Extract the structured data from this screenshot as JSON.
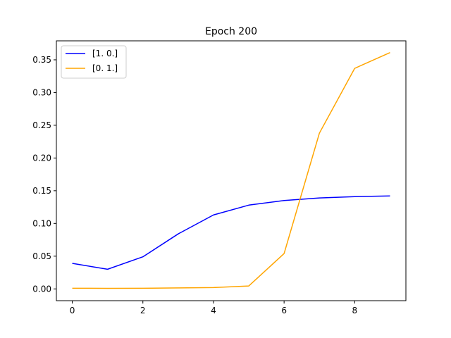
{
  "chart_data": {
    "type": "line",
    "title": "Epoch 200",
    "xlabel": "",
    "ylabel": "",
    "xlim": [
      -0.45,
      9.45
    ],
    "ylim": [
      -0.018,
      0.379
    ],
    "xticks": [
      0,
      2,
      4,
      6,
      8
    ],
    "xtick_labels": [
      "0",
      "2",
      "4",
      "6",
      "8"
    ],
    "yticks": [
      0.0,
      0.05,
      0.1,
      0.15,
      0.2,
      0.25,
      0.3,
      0.35
    ],
    "ytick_labels": [
      "0.00",
      "0.05",
      "0.10",
      "0.15",
      "0.20",
      "0.25",
      "0.30",
      "0.35"
    ],
    "grid": false,
    "legend_position": "upper-left",
    "x": [
      0,
      1,
      2,
      3,
      4,
      5,
      6,
      7,
      8,
      9
    ],
    "series": [
      {
        "name": "[1. 0.]",
        "color": "#0000ff",
        "values": [
          0.039,
          0.03,
          0.049,
          0.084,
          0.113,
          0.128,
          0.135,
          0.139,
          0.141,
          0.142
        ]
      },
      {
        "name": "[0. 1.]",
        "color": "#ffa500",
        "values": [
          0.001,
          0.0008,
          0.001,
          0.0015,
          0.002,
          0.0045,
          0.054,
          0.238,
          0.337,
          0.361
        ]
      }
    ]
  }
}
